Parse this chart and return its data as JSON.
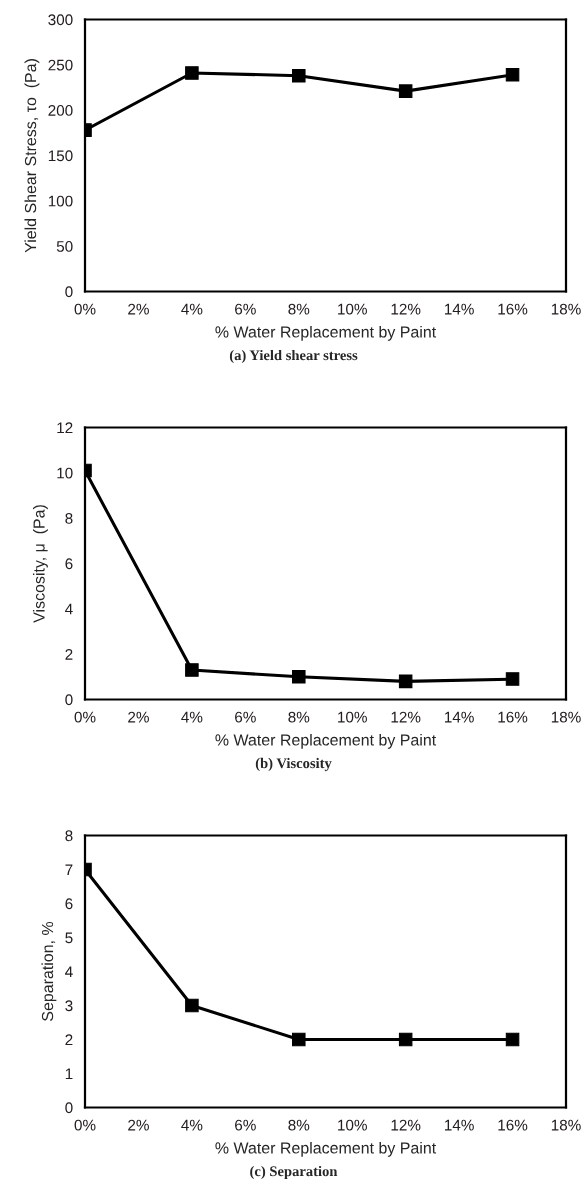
{
  "chart_data": [
    {
      "type": "line",
      "title": "(a) Yield shear stress",
      "xlabel": "% Water Replacement by Paint",
      "ylabel": "Yield Shear Stress, τo  (Pa)",
      "marker": "square",
      "line_style": "solid",
      "grid": false,
      "series": [
        {
          "x": [
            0,
            4,
            8,
            12,
            16
          ],
          "values": [
            178,
            241,
            238,
            221,
            239
          ],
          "color": "#000000"
        }
      ],
      "xlim": [
        0,
        18
      ],
      "xticks": [
        {
          "value": 0,
          "label": "0%"
        },
        {
          "value": 2,
          "label": "2%"
        },
        {
          "value": 4,
          "label": "4%"
        },
        {
          "value": 6,
          "label": "6%"
        },
        {
          "value": 8,
          "label": "8%"
        },
        {
          "value": 10,
          "label": "10%"
        },
        {
          "value": 12,
          "label": "12%"
        },
        {
          "value": 14,
          "label": "14%"
        },
        {
          "value": 16,
          "label": "16%"
        },
        {
          "value": 18,
          "label": "18%"
        }
      ],
      "ylim": [
        0,
        300
      ],
      "yticks": [
        0,
        50,
        100,
        150,
        200,
        250,
        300
      ]
    },
    {
      "type": "line",
      "title": "(b) Viscosity",
      "xlabel": "% Water Replacement by Paint",
      "ylabel": "Viscosity, μ  (Pa)",
      "marker": "square",
      "line_style": "solid",
      "grid": false,
      "series": [
        {
          "x": [
            0,
            4,
            8,
            12,
            16
          ],
          "values": [
            10.1,
            1.3,
            1.0,
            0.8,
            0.9
          ],
          "color": "#000000"
        }
      ],
      "xlim": [
        0,
        18
      ],
      "xticks": [
        {
          "value": 0,
          "label": "0%"
        },
        {
          "value": 2,
          "label": "2%"
        },
        {
          "value": 4,
          "label": "4%"
        },
        {
          "value": 6,
          "label": "6%"
        },
        {
          "value": 8,
          "label": "8%"
        },
        {
          "value": 10,
          "label": "10%"
        },
        {
          "value": 12,
          "label": "12%"
        },
        {
          "value": 14,
          "label": "14%"
        },
        {
          "value": 16,
          "label": "16%"
        },
        {
          "value": 18,
          "label": "18%"
        }
      ],
      "ylim": [
        0,
        12
      ],
      "yticks": [
        0,
        2,
        4,
        6,
        8,
        10,
        12
      ]
    },
    {
      "type": "line",
      "title": "(c) Separation",
      "xlabel": "% Water Replacement by Paint",
      "ylabel": "Separation, %",
      "marker": "square",
      "line_style": "solid",
      "grid": false,
      "series": [
        {
          "x": [
            0,
            4,
            8,
            12,
            16
          ],
          "values": [
            7,
            3,
            2,
            2,
            2
          ],
          "color": "#000000"
        }
      ],
      "xlim": [
        0,
        18
      ],
      "xticks": [
        {
          "value": 0,
          "label": "0%"
        },
        {
          "value": 2,
          "label": "2%"
        },
        {
          "value": 4,
          "label": "4%"
        },
        {
          "value": 6,
          "label": "6%"
        },
        {
          "value": 8,
          "label": "8%"
        },
        {
          "value": 10,
          "label": "10%"
        },
        {
          "value": 12,
          "label": "12%"
        },
        {
          "value": 14,
          "label": "14%"
        },
        {
          "value": 16,
          "label": "16%"
        },
        {
          "value": 18,
          "label": "18%"
        }
      ],
      "ylim": [
        0,
        8
      ],
      "yticks": [
        0,
        1,
        2,
        3,
        4,
        5,
        6,
        7,
        8
      ]
    }
  ]
}
